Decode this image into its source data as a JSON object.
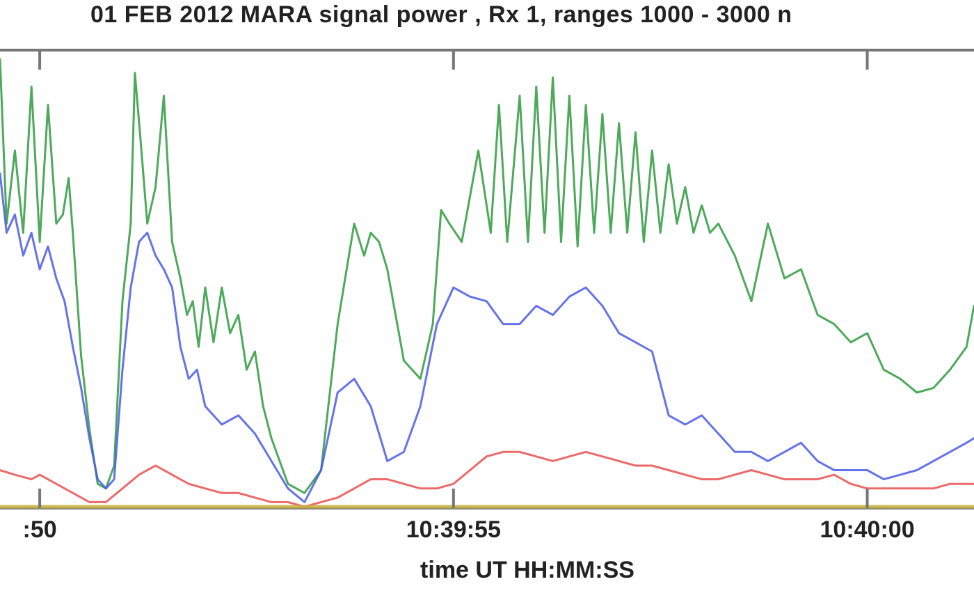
{
  "chart_data": {
    "type": "line",
    "title": "01 FEB 2012  MARA signal power , Rx 1, ranges 1000 - 3000 n",
    "xlabel": "time UT  HH:MM:SS",
    "ylabel": "",
    "x_tick_labels": [
      ":50",
      "10:39:55",
      "10:40:00"
    ],
    "x_tick_times_sec": [
      0,
      5,
      10
    ],
    "xlim_sec": [
      -0.48,
      11.29
    ],
    "ylim": [
      0,
      100
    ],
    "grid": false,
    "series": [
      {
        "color": "#2e9a3e",
        "x": [
          -0.48,
          -0.4,
          -0.3,
          -0.2,
          -0.1,
          0.0,
          0.1,
          0.2,
          0.28,
          0.35,
          0.4,
          0.5,
          0.6,
          0.7,
          0.8,
          0.9,
          1.0,
          1.1,
          1.15,
          1.22,
          1.3,
          1.4,
          1.5,
          1.6,
          1.7,
          1.78,
          1.85,
          1.92,
          2.0,
          2.1,
          2.2,
          2.3,
          2.4,
          2.5,
          2.6,
          2.7,
          2.8,
          3.0,
          3.2,
          3.4,
          3.6,
          3.8,
          3.92,
          4.0,
          4.1,
          4.2,
          4.4,
          4.6,
          4.75,
          4.85,
          4.95,
          5.1,
          5.3,
          5.45,
          5.55,
          5.65,
          5.8,
          5.9,
          6.0,
          6.1,
          6.2,
          6.3,
          6.4,
          6.5,
          6.6,
          6.7,
          6.8,
          6.9,
          7.0,
          7.1,
          7.2,
          7.3,
          7.4,
          7.5,
          7.6,
          7.7,
          7.8,
          7.9,
          8.0,
          8.1,
          8.2,
          8.4,
          8.6,
          8.8,
          9.0,
          9.2,
          9.4,
          9.6,
          9.8,
          10.0,
          10.2,
          10.4,
          10.6,
          10.8,
          11.0,
          11.2,
          11.29
        ],
        "y": [
          98,
          62,
          78,
          60,
          92,
          58,
          88,
          62,
          64,
          72,
          60,
          33,
          17,
          5,
          4,
          9,
          45,
          62,
          95,
          80,
          62,
          70,
          90,
          58,
          50,
          42,
          45,
          35,
          48,
          36,
          48,
          38,
          42,
          30,
          34,
          22,
          15,
          5,
          3,
          8,
          40,
          62,
          55,
          60,
          58,
          52,
          32,
          28,
          40,
          65,
          62,
          58,
          78,
          60,
          88,
          58,
          90,
          58,
          92,
          60,
          94,
          58,
          90,
          57,
          88,
          60,
          86,
          60,
          84,
          60,
          82,
          58,
          78,
          60,
          75,
          62,
          70,
          60,
          66,
          60,
          62,
          55,
          45,
          62,
          50,
          52,
          42,
          40,
          36,
          38,
          30,
          28,
          25,
          26,
          30,
          35,
          44
        ],
        "stroke_width": 3
      },
      {
        "color": "#4a5ae6",
        "x": [
          -0.48,
          -0.4,
          -0.3,
          -0.2,
          -0.1,
          0.0,
          0.1,
          0.2,
          0.3,
          0.4,
          0.5,
          0.6,
          0.7,
          0.8,
          0.9,
          1.0,
          1.1,
          1.2,
          1.3,
          1.4,
          1.5,
          1.6,
          1.7,
          1.8,
          1.9,
          2.0,
          2.2,
          2.4,
          2.6,
          2.8,
          3.0,
          3.2,
          3.4,
          3.6,
          3.8,
          4.0,
          4.2,
          4.4,
          4.6,
          4.8,
          5.0,
          5.2,
          5.4,
          5.6,
          5.8,
          6.0,
          6.2,
          6.4,
          6.6,
          6.8,
          7.0,
          7.2,
          7.4,
          7.6,
          7.8,
          8.0,
          8.2,
          8.4,
          8.6,
          8.8,
          9.0,
          9.2,
          9.4,
          9.6,
          9.8,
          10.0,
          10.2,
          10.4,
          10.6,
          10.8,
          11.0,
          11.2,
          11.29
        ],
        "y": [
          73,
          60,
          64,
          55,
          60,
          52,
          57,
          50,
          45,
          35,
          26,
          15,
          6,
          4,
          6,
          30,
          48,
          58,
          60,
          55,
          52,
          48,
          35,
          28,
          30,
          22,
          18,
          20,
          16,
          10,
          4,
          1,
          8,
          25,
          28,
          22,
          10,
          12,
          22,
          40,
          48,
          46,
          45,
          40,
          40,
          44,
          42,
          46,
          48,
          44,
          38,
          36,
          34,
          20,
          18,
          20,
          16,
          12,
          12,
          10,
          12,
          14,
          10,
          8,
          8,
          8,
          6,
          7,
          8,
          10,
          12,
          14,
          15
        ],
        "stroke_width": 3
      },
      {
        "color": "#e85050",
        "x": [
          -0.48,
          -0.3,
          -0.1,
          0.0,
          0.2,
          0.4,
          0.6,
          0.8,
          1.0,
          1.2,
          1.4,
          1.6,
          1.8,
          2.0,
          2.2,
          2.4,
          2.6,
          2.8,
          3.0,
          3.2,
          3.4,
          3.6,
          3.8,
          4.0,
          4.2,
          4.4,
          4.6,
          4.8,
          5.0,
          5.2,
          5.4,
          5.6,
          5.8,
          6.0,
          6.2,
          6.4,
          6.6,
          6.8,
          7.0,
          7.2,
          7.4,
          7.6,
          7.8,
          8.0,
          8.2,
          8.4,
          8.6,
          8.8,
          9.0,
          9.2,
          9.4,
          9.6,
          9.8,
          10.0,
          10.2,
          10.4,
          10.6,
          10.8,
          11.0,
          11.2,
          11.29
        ],
        "y": [
          8,
          7,
          6,
          7,
          5,
          3,
          1,
          1,
          4,
          7,
          9,
          7,
          5,
          4,
          3,
          3,
          2,
          1,
          1,
          0,
          1,
          2,
          4,
          6,
          6,
          5,
          4,
          4,
          5,
          8,
          11,
          12,
          12,
          11,
          10,
          11,
          12,
          11,
          10,
          9,
          9,
          8,
          7,
          6,
          6,
          7,
          8,
          7,
          6,
          6,
          6,
          7,
          5,
          4,
          4,
          4,
          4,
          4,
          5,
          5,
          5
        ],
        "stroke_width": 3
      },
      {
        "color": "#c8b440",
        "x": [
          -0.48,
          11.29
        ],
        "y": [
          0,
          0
        ],
        "stroke_width": 5
      }
    ]
  }
}
